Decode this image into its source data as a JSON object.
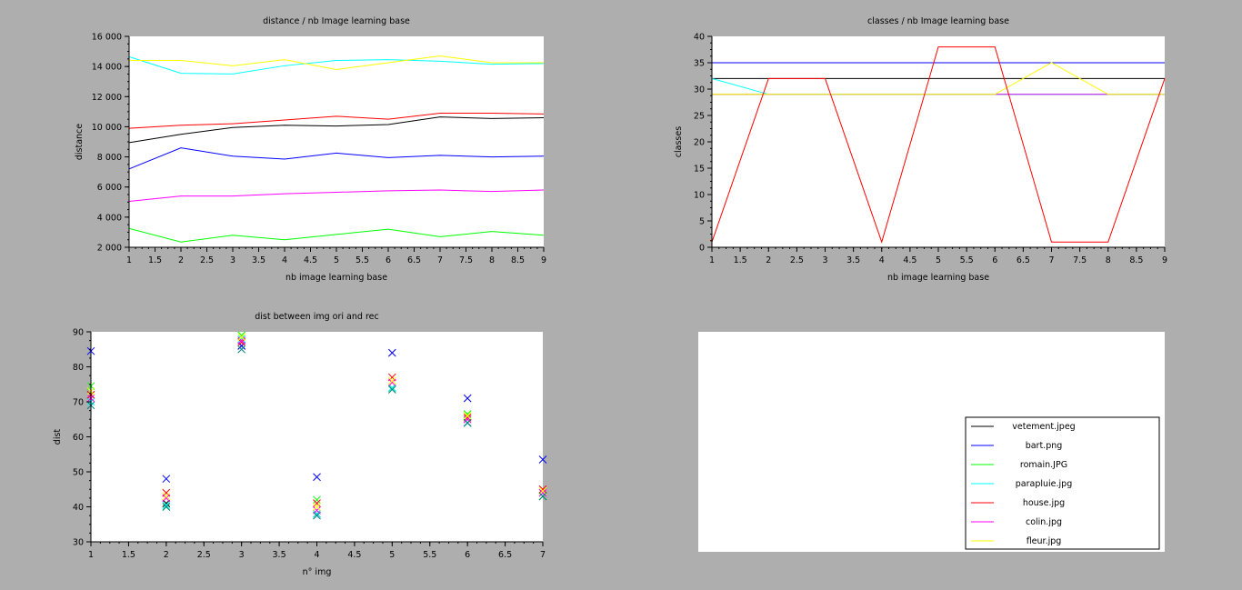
{
  "chart_data": [
    {
      "type": "line",
      "title": "distance / nb Image learning base",
      "xlabel": "nb image learning base",
      "ylabel": "distance",
      "xlim": [
        1,
        9
      ],
      "ylim": [
        2000,
        16000
      ],
      "xticks": [
        1,
        1.5,
        2,
        2.5,
        3,
        3.5,
        4,
        4.5,
        5,
        5.5,
        6,
        6.5,
        7,
        7.5,
        8,
        8.5,
        9
      ],
      "yticks": [
        2000,
        4000,
        6000,
        8000,
        10000,
        12000,
        14000,
        16000
      ],
      "x": [
        1,
        2,
        3,
        4,
        5,
        6,
        7,
        8,
        9
      ],
      "series": [
        {
          "name": "vetement.jpeg",
          "color": "#000000",
          "values": [
            8950,
            9500,
            9950,
            10100,
            10050,
            10150,
            10650,
            10550,
            10600
          ]
        },
        {
          "name": "bart.png",
          "color": "#0000ff",
          "values": [
            7200,
            8600,
            8050,
            7850,
            8250,
            7950,
            8100,
            8000,
            8050
          ]
        },
        {
          "name": "romain.JPG",
          "color": "#00ff00",
          "values": [
            3250,
            2350,
            2800,
            2500,
            2850,
            3200,
            2700,
            3050,
            2800
          ]
        },
        {
          "name": "parapluie.jpg",
          "color": "#00ffff",
          "values": [
            14650,
            13550,
            13500,
            14050,
            14400,
            14450,
            14350,
            14150,
            14200
          ]
        },
        {
          "name": "house.jpg",
          "color": "#ff0000",
          "values": [
            9900,
            10100,
            10200,
            10450,
            10700,
            10500,
            10900,
            10900,
            10850
          ]
        },
        {
          "name": "colin.jpg",
          "color": "#ff00ff",
          "values": [
            5050,
            5400,
            5400,
            5550,
            5650,
            5750,
            5800,
            5700,
            5800
          ]
        },
        {
          "name": "fleur.jpg",
          "color": "#ffff00",
          "values": [
            14400,
            14400,
            14050,
            14450,
            13800,
            14250,
            14700,
            14250,
            14250
          ]
        }
      ]
    },
    {
      "type": "line",
      "title": "classes / nb Image learning base",
      "xlabel": "nb image learning base",
      "ylabel": "classes",
      "xlim": [
        1,
        9
      ],
      "ylim": [
        0,
        40
      ],
      "xticks": [
        1,
        1.5,
        2,
        2.5,
        3,
        3.5,
        4,
        4.5,
        5,
        5.5,
        6,
        6.5,
        7,
        7.5,
        8,
        8.5,
        9
      ],
      "yticks": [
        0,
        5,
        10,
        15,
        20,
        25,
        30,
        35,
        40
      ],
      "x": [
        1,
        2,
        3,
        4,
        5,
        6,
        7,
        8,
        9
      ],
      "series": [
        {
          "name": "vetement.jpeg",
          "color": "#000000",
          "values": [
            32,
            32,
            32,
            32,
            32,
            32,
            32,
            32,
            32
          ]
        },
        {
          "name": "bart.png",
          "color": "#0000ff",
          "values": [
            35,
            35,
            35,
            35,
            35,
            35,
            35,
            35,
            35
          ]
        },
        {
          "name": "romain.JPG",
          "color": "#00ff00",
          "values": [
            29,
            29,
            29,
            29,
            29,
            29,
            29,
            29,
            29
          ]
        },
        {
          "name": "parapluie.jpg",
          "color": "#00ffff",
          "values": [
            32,
            29,
            29,
            29,
            29,
            29,
            29,
            29,
            29
          ]
        },
        {
          "name": "colin.jpg",
          "color": "#ff00ff",
          "values": [
            29,
            29,
            29,
            29,
            29,
            29,
            29,
            29,
            29
          ]
        },
        {
          "name": "fleur.jpg",
          "color": "#ffff00",
          "values": [
            29,
            29,
            29,
            29,
            29,
            29,
            35,
            29,
            29
          ]
        },
        {
          "name": "house.jpg",
          "color": "#ff0000",
          "values": [
            1,
            32,
            32,
            1,
            38,
            38,
            1,
            1,
            32
          ]
        }
      ]
    },
    {
      "type": "scatter",
      "title": "dist between img ori and rec",
      "xlabel": "n° img",
      "ylabel": "dist",
      "xlim": [
        1,
        7
      ],
      "ylim": [
        30,
        90
      ],
      "xticks": [
        1,
        1.5,
        2,
        2.5,
        3,
        3.5,
        4,
        4.5,
        5,
        5.5,
        6,
        6.5,
        7
      ],
      "yticks": [
        30,
        40,
        50,
        60,
        70,
        80,
        90
      ],
      "marker": "x",
      "x": [
        1,
        2,
        3,
        4,
        5,
        6,
        7
      ],
      "series": [
        {
          "name": "vetement.jpeg",
          "color": "#000000",
          "values": [
            72,
            41,
            86,
            38,
            74,
            64,
            43
          ]
        },
        {
          "name": "bart.png",
          "color": "#0000ff",
          "values": [
            84.5,
            48,
            86,
            48.5,
            84,
            71,
            53.5
          ]
        },
        {
          "name": "romain.JPG",
          "color": "#00ff00",
          "values": [
            74.5,
            40,
            89,
            42,
            74,
            66.5,
            43
          ]
        },
        {
          "name": "parapluie.jpg",
          "color": "#00ffff",
          "values": [
            70,
            40.5,
            88,
            38,
            74,
            64,
            44
          ]
        },
        {
          "name": "house.jpg",
          "color": "#ff0000",
          "values": [
            72,
            44,
            87,
            41,
            77,
            65.5,
            45
          ]
        },
        {
          "name": "colin.jpg",
          "color": "#ff00ff",
          "values": [
            71,
            42.5,
            87.5,
            39,
            75.5,
            65,
            44
          ]
        },
        {
          "name": "fleur.jpg",
          "color": "#ffff00",
          "values": [
            73,
            43,
            88.5,
            40,
            76,
            66,
            44.5
          ]
        },
        {
          "name": "",
          "color": "#008080",
          "values": [
            69,
            40,
            85,
            37.5,
            73.5,
            64,
            43
          ]
        }
      ]
    }
  ],
  "legend": {
    "placement": "bottom-right",
    "entries": [
      {
        "label": "vetement.jpeg",
        "color": "#000000"
      },
      {
        "label": "bart.png",
        "color": "#0000ff"
      },
      {
        "label": "romain.JPG",
        "color": "#00ff00"
      },
      {
        "label": "parapluie.jpg",
        "color": "#00ffff"
      },
      {
        "label": "house.jpg",
        "color": "#ff0000"
      },
      {
        "label": "colin.jpg",
        "color": "#ff00ff"
      },
      {
        "label": "fleur.jpg",
        "color": "#ffff00"
      }
    ]
  }
}
